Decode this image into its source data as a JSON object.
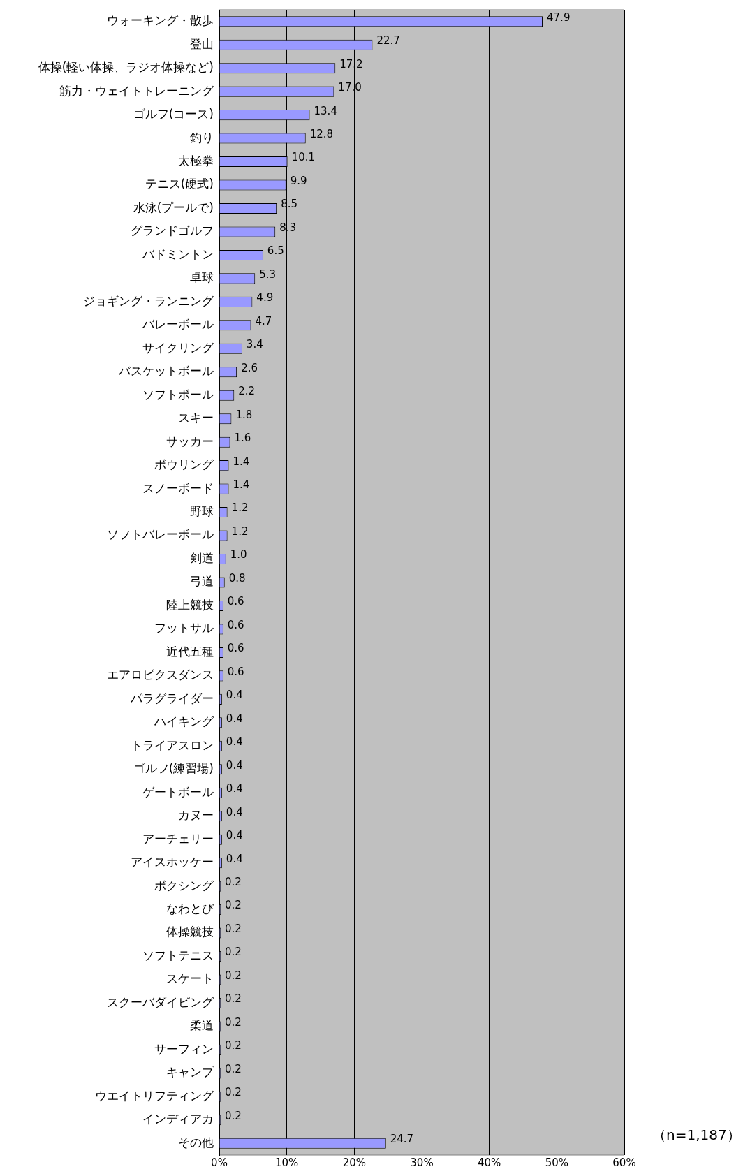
{
  "chart_data": {
    "type": "bar",
    "orientation": "horizontal",
    "categories": [
      "ウォーキング・散歩",
      "登山",
      "体操(軽い体操、ラジオ体操など)",
      "筋力・ウェイトトレーニング",
      "ゴルフ(コース)",
      "釣り",
      "太極拳",
      "テニス(硬式)",
      "水泳(プールで)",
      "グランドゴルフ",
      "バドミントン",
      "卓球",
      "ジョギング・ランニング",
      "バレーボール",
      "サイクリング",
      "バスケットボール",
      "ソフトボール",
      "スキー",
      "サッカー",
      "ボウリング",
      "スノーボード",
      "野球",
      "ソフトバレーボール",
      "剣道",
      "弓道",
      "陸上競技",
      "フットサル",
      "近代五種",
      "エアロビクスダンス",
      "パラグライダー",
      "ハイキング",
      "トライアスロン",
      "ゴルフ(練習場)",
      "ゲートボール",
      "カヌー",
      "アーチェリー",
      "アイスホッケー",
      "ボクシング",
      "なわとび",
      "体操競技",
      "ソフトテニス",
      "スケート",
      "スクーバダイビング",
      "柔道",
      "サーフィン",
      "キャンプ",
      "ウエイトリフティング",
      "インディアカ",
      "その他"
    ],
    "values": [
      47.9,
      22.7,
      17.2,
      17.0,
      13.4,
      12.8,
      10.1,
      9.9,
      8.5,
      8.3,
      6.5,
      5.3,
      4.9,
      4.7,
      3.4,
      2.6,
      2.2,
      1.8,
      1.6,
      1.4,
      1.4,
      1.2,
      1.2,
      1.0,
      0.8,
      0.6,
      0.6,
      0.6,
      0.6,
      0.4,
      0.4,
      0.4,
      0.4,
      0.4,
      0.4,
      0.4,
      0.4,
      0.2,
      0.2,
      0.2,
      0.2,
      0.2,
      0.2,
      0.2,
      0.2,
      0.2,
      0.2,
      0.2,
      24.7
    ],
    "value_labels": [
      "47.9",
      "22.7",
      "17.2",
      "17.0",
      "13.4",
      "12.8",
      "10.1",
      "9.9",
      "8.5",
      "8.3",
      "6.5",
      "5.3",
      "4.9",
      "4.7",
      "3.4",
      "2.6",
      "2.2",
      "1.8",
      "1.6",
      "1.4",
      "1.4",
      "1.2",
      "1.2",
      "1.0",
      "0.8",
      "0.6",
      "0.6",
      "0.6",
      "0.6",
      "0.4",
      "0.4",
      "0.4",
      "0.4",
      "0.4",
      "0.4",
      "0.4",
      "0.4",
      "0.2",
      "0.2",
      "0.2",
      "0.2",
      "0.2",
      "0.2",
      "0.2",
      "0.2",
      "0.2",
      "0.2",
      "0.2",
      "24.7"
    ],
    "color": "#9999ff",
    "xlim": [
      0,
      60
    ],
    "xticks": [
      {
        "value": 0,
        "label": "0%"
      },
      {
        "value": 10,
        "label": "10%"
      },
      {
        "value": 20,
        "label": "20%"
      },
      {
        "value": 30,
        "label": "30%"
      },
      {
        "value": 40,
        "label": "40%"
      },
      {
        "value": 50,
        "label": "50%"
      },
      {
        "value": 60,
        "label": "60%"
      }
    ],
    "grid": "x",
    "annotations": [
      "（n=1,187）"
    ]
  }
}
